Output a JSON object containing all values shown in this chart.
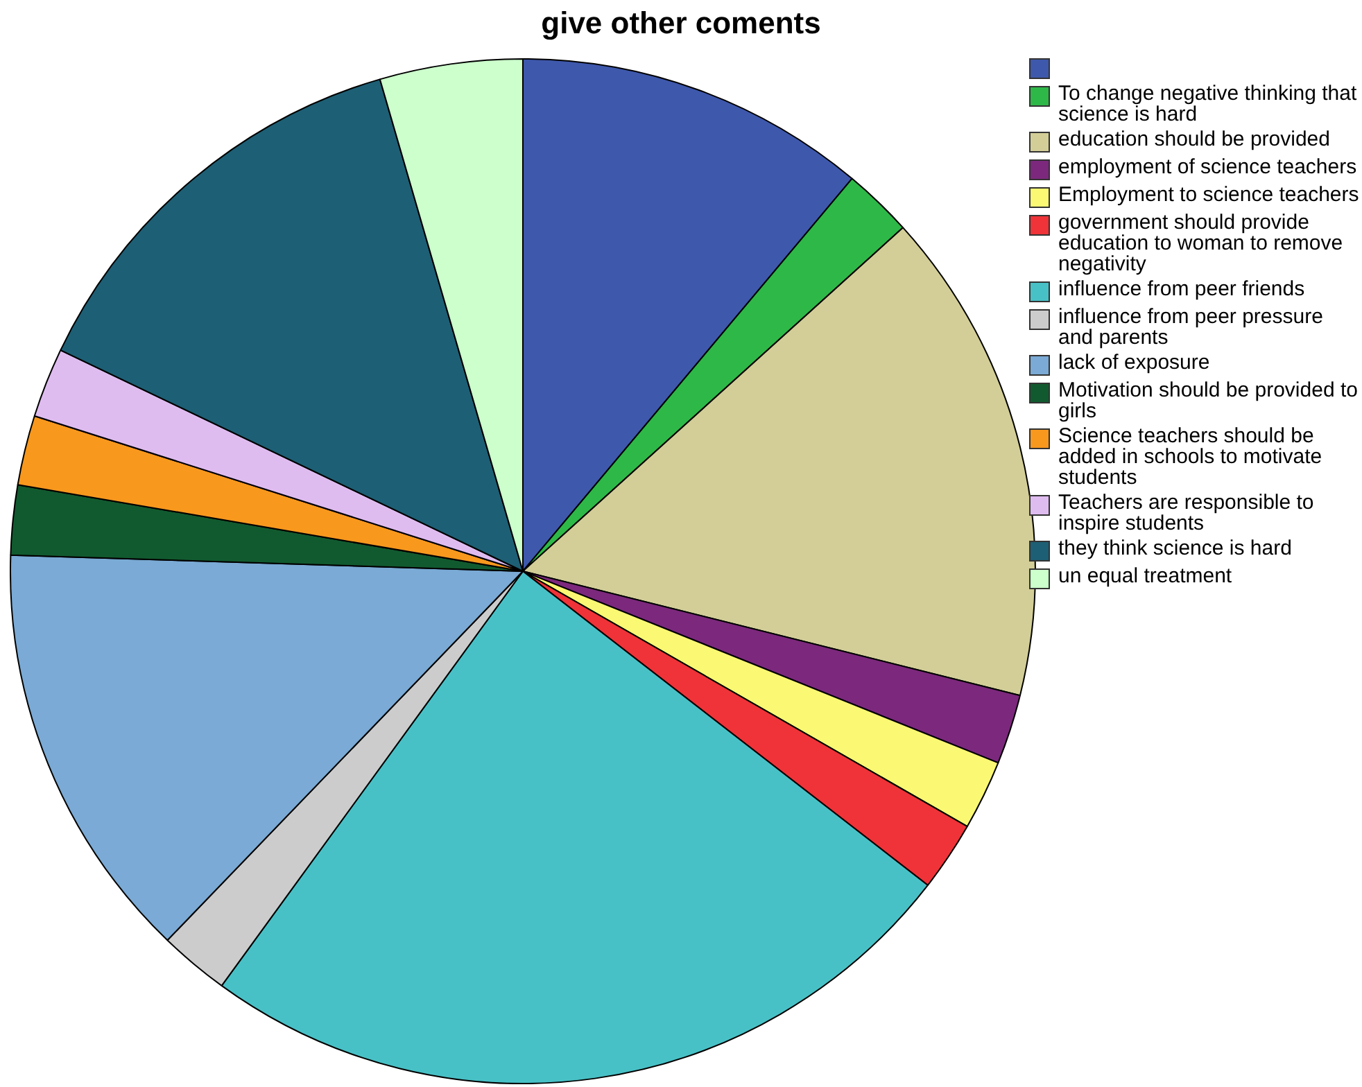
{
  "chart_data": {
    "type": "pie",
    "title": "give other coments",
    "legend": "right",
    "categories": [
      null,
      "To change negative thinking that science is hard",
      "education should be provided",
      "employment of science teachers",
      "Employment to science teachers",
      "government should provide education to woman to remove negativity",
      "influence from peer friends",
      "influence from peer pressure and parents",
      "lack of exposure",
      "Motivation should be provided to girls",
      "Science teachers should be added in schools to motivate students",
      "Teachers are responsible to inspire students",
      "they think science is hard",
      "un equal treatment"
    ],
    "values": [
      11.1,
      2.2,
      15.6,
      2.2,
      2.2,
      2.2,
      24.5,
      2.2,
      13.3,
      2.2,
      2.2,
      2.2,
      13.4,
      4.5
    ],
    "colors": [
      "#3e58ac",
      "#2eb848",
      "#d3ce97",
      "#7c287d",
      "#fbf873",
      "#ef3338",
      "#48c1c6",
      "#cccccc",
      "#7aaad5",
      "#115a2f",
      "#f8981d",
      "#dfbcf0",
      "#1d5f75",
      "#ccffcc"
    ]
  }
}
